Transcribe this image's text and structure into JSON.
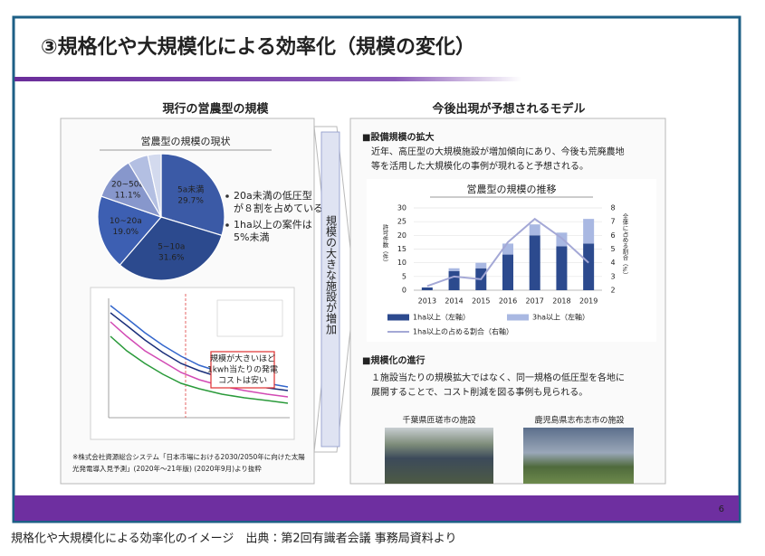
{
  "slide": {
    "title": "③規格化や大規模化による効率化（規模の変化）",
    "page_number": "6"
  },
  "left": {
    "heading": "現行の営農型の規模",
    "pie": {
      "type": "pie",
      "title": "営農型の規模の現状",
      "categories": [
        "5a未満",
        "5~10a",
        "10~20a",
        "20~50a",
        null,
        null
      ],
      "values": [
        29.7,
        31.6,
        19.0,
        11.1,
        5.2,
        3.4
      ],
      "value_labels": [
        "29.7%",
        "31.6%",
        "19.0%",
        "11.1%",
        null,
        null
      ],
      "colors": [
        "#3b5aa6",
        "#2c4a8e",
        "#3d5fb2",
        "#8797cc",
        "#b3bfe2",
        "#d3daee"
      ]
    },
    "bullets": [
      [
        "20a未満の低圧型",
        "が８割を占めている"
      ],
      [
        "1ha以上の案件は",
        "5%未満"
      ]
    ],
    "line_chart_callout": [
      "規模が大きいほど",
      "1kwh当たりの発電",
      "コストは安い"
    ],
    "footnote": [
      "※株式会社資源総合システム「日本市場における2030/2050年に向けた太陽",
      "光発電導入見予測」(2020年～21年版) (2020年9月)より抜粋"
    ]
  },
  "arrow_text": "規模の大きな施設が増加",
  "right": {
    "heading": "今後出現が予想されるモデル",
    "section1": {
      "title": "■設備規模の拡大",
      "lines": [
        "近年、高圧型の大規模施設が増加傾向にあり、今後も荒廃農地",
        "等を活用した大規模化の事例が現れると予想される。"
      ]
    },
    "chart": {
      "type": "bar",
      "title": "営農型の規模の推移",
      "categories": [
        "2013",
        "2014",
        "2015",
        "2016",
        "2017",
        "2018",
        "2019"
      ],
      "series": [
        {
          "name": "1ha以上（左軸）",
          "color": "#2c4a8e",
          "values": [
            1,
            7,
            8,
            13,
            20,
            16,
            17
          ]
        },
        {
          "name": "3ha以上（左軸）",
          "color": "#a9b8e2",
          "values": [
            0,
            1,
            2,
            4,
            4,
            5,
            9
          ]
        },
        {
          "name": "1ha以上の占める割合（右軸）",
          "color": "#a4a8d6",
          "axis": "y2",
          "type": "line",
          "values": [
            2.3,
            3,
            2.8,
            5.5,
            7.2,
            5.8,
            4
          ]
        }
      ],
      "stacked": true,
      "y_label": "許可件数（件）",
      "y2_label": "全体に占める割合（%）",
      "ylim": [
        0,
        30
      ],
      "yticks": [
        0,
        5,
        10,
        15,
        20,
        25,
        30
      ],
      "y2lim": [
        2,
        8
      ],
      "y2ticks": [
        2,
        3,
        4,
        5,
        6,
        7,
        8
      ],
      "grid": true
    },
    "section2": {
      "title": "■規模化の進行",
      "lines": [
        "１施設当たりの規模拡大ではなく、同一規格の低圧型を各地に",
        "展開することで、コスト削減を図る事例も見られる。"
      ]
    },
    "photos": [
      "千葉県匝瑳市の施設",
      "鹿児島県志布志市の施設"
    ]
  },
  "caption": "規格化や大規模化による効率化のイメージ　出典：第2回有識者会議 事務局資料より"
}
